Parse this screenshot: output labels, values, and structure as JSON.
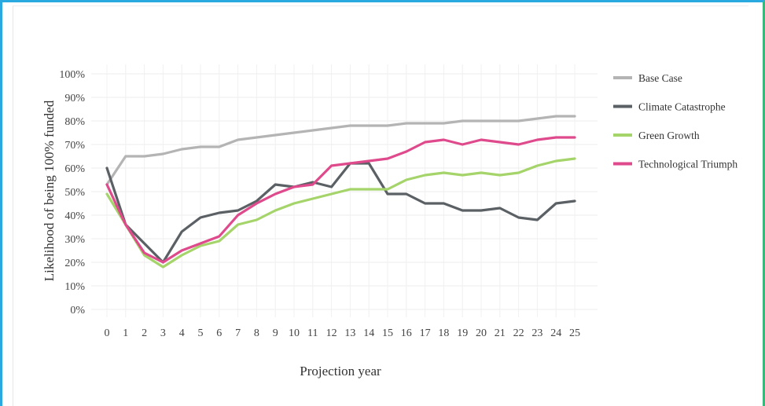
{
  "chart_data": {
    "type": "line",
    "xlabel": "Projection year",
    "ylabel": "Likelihood of being 100% funded",
    "x": [
      0,
      1,
      2,
      3,
      4,
      5,
      6,
      7,
      8,
      9,
      10,
      11,
      12,
      13,
      14,
      15,
      16,
      17,
      18,
      19,
      20,
      21,
      22,
      23,
      24,
      25
    ],
    "xlim": [
      0,
      25
    ],
    "ylim": [
      0,
      100
    ],
    "ytick_labels": [
      "0%",
      "10%",
      "20%",
      "30%",
      "40%",
      "50%",
      "60%",
      "70%",
      "80%",
      "90%",
      "100%"
    ],
    "grid": true,
    "legend_position": "right",
    "series": [
      {
        "name": "Base Case",
        "color": "#b4b4b4",
        "values": [
          53,
          65,
          65,
          66,
          68,
          69,
          69,
          72,
          73,
          74,
          75,
          76,
          77,
          78,
          78,
          78,
          79,
          79,
          79,
          80,
          80,
          80,
          80,
          81,
          82,
          82
        ]
      },
      {
        "name": "Climate Catastrophe",
        "color": "#5b6065",
        "values": [
          60,
          36,
          28,
          20,
          33,
          39,
          41,
          42,
          46,
          53,
          52,
          54,
          52,
          62,
          62,
          49,
          49,
          45,
          45,
          42,
          42,
          43,
          39,
          38,
          45,
          46
        ]
      },
      {
        "name": "Green Growth",
        "color": "#a5d46a",
        "values": [
          49,
          36,
          23,
          18,
          23,
          27,
          29,
          36,
          38,
          42,
          45,
          47,
          49,
          51,
          51,
          51,
          55,
          57,
          58,
          57,
          58,
          57,
          58,
          61,
          63,
          64
        ]
      },
      {
        "name": "Technological Triumph",
        "color": "#df4a8c",
        "values": [
          53,
          36,
          24,
          20,
          25,
          28,
          31,
          40,
          45,
          49,
          52,
          53,
          61,
          62,
          63,
          64,
          67,
          71,
          72,
          70,
          72,
          71,
          70,
          72,
          73,
          73
        ]
      }
    ]
  }
}
